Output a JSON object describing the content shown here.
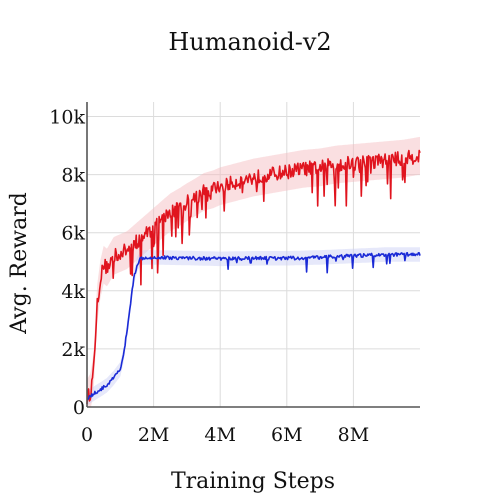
{
  "chart_data": {
    "type": "line",
    "title": "Humanoid-v2",
    "xlabel": "Training Steps",
    "ylabel": "Avg. Reward",
    "xlim": [
      0,
      10000000
    ],
    "ylim": [
      0,
      10500
    ],
    "grid": true,
    "legend": "none",
    "x_ticks": [
      {
        "value": 0,
        "label": "0"
      },
      {
        "value": 2000000,
        "label": "2M"
      },
      {
        "value": 4000000,
        "label": "4M"
      },
      {
        "value": 6000000,
        "label": "6M"
      },
      {
        "value": 8000000,
        "label": "8M"
      }
    ],
    "y_ticks": [
      {
        "value": 0,
        "label": "0"
      },
      {
        "value": 2000,
        "label": "2k"
      },
      {
        "value": 4000,
        "label": "4k"
      },
      {
        "value": 6000,
        "label": "6k"
      },
      {
        "value": 8000,
        "label": "8k"
      },
      {
        "value": 10000,
        "label": "10k"
      }
    ],
    "series": [
      {
        "color": "#e0141e",
        "band_color": "#f4b9bd",
        "x": [
          0,
          100000,
          200000,
          300000,
          400000,
          500000,
          600000,
          800000,
          1000000,
          1200000,
          1400000,
          1600000,
          1800000,
          2000000,
          2200000,
          2500000,
          2800000,
          3000000,
          3300000,
          3500000,
          3800000,
          4000000,
          4500000,
          5000000,
          5500000,
          6000000,
          6500000,
          7000000,
          7500000,
          8000000,
          8500000,
          9000000,
          9500000,
          10000000
        ],
        "y": [
          300,
          500,
          1200,
          3500,
          4400,
          4900,
          4800,
          5200,
          5300,
          5400,
          5600,
          5800,
          6000,
          6200,
          6400,
          6700,
          6900,
          7050,
          7250,
          7400,
          7500,
          7600,
          7750,
          7900,
          8000,
          8100,
          8200,
          8250,
          8350,
          8400,
          8450,
          8500,
          8550,
          8650
        ]
      },
      {
        "color": "#1a2ad6",
        "band_color": "#c8ccf4",
        "x": [
          0,
          200000,
          400000,
          600000,
          800000,
          1000000,
          1100000,
          1200000,
          1300000,
          1400000,
          1500000,
          1600000,
          1700000,
          1800000,
          2000000,
          3000000,
          4000000,
          5000000,
          6000000,
          7000000,
          8000000,
          9000000,
          10000000
        ],
        "y": [
          300,
          450,
          600,
          750,
          1000,
          1300,
          1800,
          2600,
          3500,
          4400,
          4900,
          5100,
          5150,
          5150,
          5150,
          5130,
          5100,
          5120,
          5120,
          5150,
          5200,
          5250,
          5250
        ]
      }
    ]
  }
}
